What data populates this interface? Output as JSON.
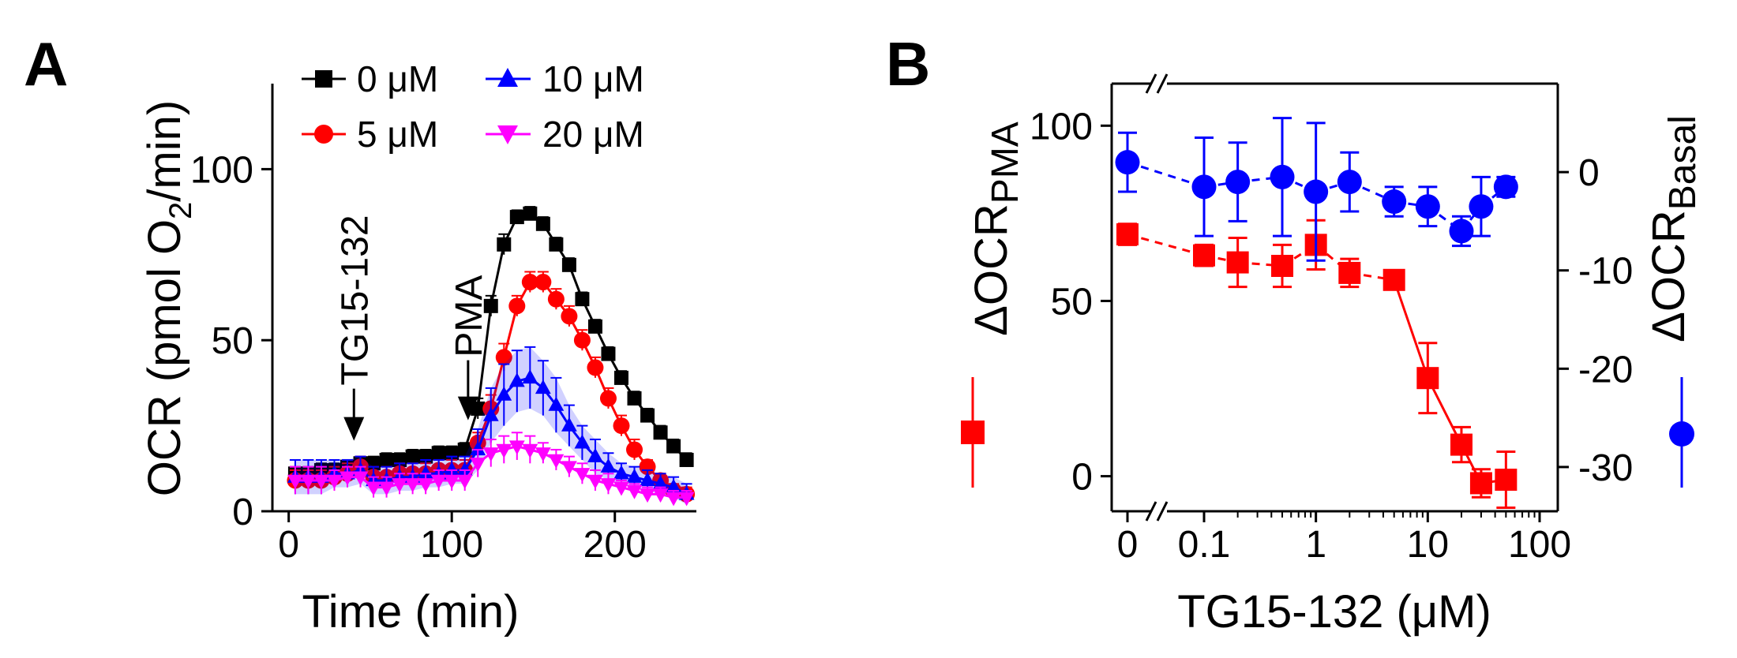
{
  "panel_labels": {
    "a": "A",
    "b": "B"
  },
  "chart_data": [
    {
      "type": "line",
      "panel": "A",
      "title": "",
      "xlabel": "Time (min)",
      "ylabel_main": "OCR (pmol O",
      "ylabel_sub": "2",
      "ylabel_tail": "/min)",
      "xlim": [
        -10,
        250
      ],
      "ylim": [
        0,
        125
      ],
      "xticks": [
        0,
        100,
        200
      ],
      "yticks": [
        0,
        50,
        100
      ],
      "x": [
        4,
        12,
        20,
        28,
        36,
        44,
        52,
        60,
        68,
        76,
        84,
        92,
        100,
        108,
        116,
        124,
        132,
        140,
        148,
        156,
        164,
        172,
        180,
        188,
        196,
        204,
        212,
        220,
        228,
        236,
        244
      ],
      "annotations": [
        {
          "label": "TG15-132",
          "x": 40
        },
        {
          "label": "PMA",
          "x": 110
        }
      ],
      "legend": {
        "position": "top",
        "columns": 2
      },
      "series": [
        {
          "name": "0 μM",
          "color": "#000000",
          "marker": "square",
          "values": [
            11,
            11,
            12,
            12,
            13,
            14,
            14,
            15,
            15,
            16,
            16,
            17,
            17,
            18,
            30,
            60,
            78,
            86,
            87,
            84,
            78,
            72,
            62,
            54,
            46,
            39,
            33,
            28,
            23,
            19,
            15
          ],
          "errors": [
            2,
            2,
            2,
            2,
            2,
            2,
            2,
            2,
            2,
            2,
            2,
            2,
            2,
            2,
            3,
            3,
            3,
            2,
            2,
            2,
            2,
            2,
            2,
            2,
            2,
            2,
            2,
            2,
            2,
            2,
            2
          ]
        },
        {
          "name": "5 μM",
          "color": "#ff0000",
          "marker": "circle",
          "values": [
            9,
            9,
            9,
            10,
            11,
            13,
            10,
            10,
            11,
            11,
            11,
            12,
            12,
            12,
            20,
            30,
            45,
            60,
            67,
            67,
            62,
            57,
            50,
            42,
            33,
            25,
            18,
            13,
            9,
            6,
            5
          ],
          "errors": [
            3,
            3,
            3,
            3,
            3,
            3,
            3,
            3,
            3,
            3,
            3,
            3,
            3,
            3,
            3,
            4,
            4,
            3,
            3,
            3,
            3,
            3,
            3,
            3,
            3,
            3,
            3,
            2,
            2,
            2,
            2
          ]
        },
        {
          "name": "10 μM",
          "color": "#0000ff",
          "marker": "triangle-up",
          "values": [
            10,
            10,
            10,
            11,
            11,
            12,
            9,
            9,
            10,
            10,
            11,
            11,
            12,
            12,
            18,
            28,
            34,
            38,
            39,
            36,
            31,
            25,
            20,
            16,
            13,
            11,
            10,
            9,
            8,
            7,
            5
          ],
          "errors": [
            5,
            5,
            5,
            4,
            4,
            4,
            4,
            4,
            4,
            4,
            4,
            4,
            4,
            4,
            6,
            8,
            9,
            9,
            9,
            8,
            8,
            6,
            5,
            5,
            4,
            3,
            3,
            3,
            3,
            3,
            3
          ],
          "shaded_error": true
        },
        {
          "name": "20 μM",
          "color": "#ff00ff",
          "marker": "triangle-down",
          "values": [
            9,
            9,
            9,
            9,
            10,
            10,
            7,
            7,
            8,
            8,
            8,
            9,
            9,
            9,
            14,
            17,
            18,
            19,
            18,
            17,
            15,
            13,
            11,
            9,
            8,
            7,
            6,
            5,
            5,
            4,
            4
          ],
          "errors": [
            4,
            4,
            4,
            3,
            3,
            3,
            3,
            3,
            3,
            3,
            3,
            3,
            3,
            3,
            4,
            4,
            4,
            4,
            4,
            3,
            3,
            3,
            3,
            3,
            3,
            2,
            2,
            2,
            2,
            2,
            2
          ]
        }
      ]
    },
    {
      "type": "scatter",
      "panel": "B",
      "title": "",
      "xlabel": "TG15-132 (μM)",
      "xscale": "log",
      "xticks": [
        0.1,
        1,
        10,
        100
      ],
      "xtick_labels": [
        "0.1",
        "1",
        "10",
        "100"
      ],
      "zero_tick_label": "0",
      "left_y": {
        "label_main": "ΔOCR",
        "label_sub": "PMA",
        "ylim": [
          -10,
          112
        ],
        "yticks": [
          0,
          50,
          100
        ]
      },
      "right_y": {
        "label_main": "ΔOCR",
        "label_sub": "Basal",
        "ylim": [
          -34.5,
          9.0
        ],
        "yticks": [
          0,
          -10,
          -20,
          -30
        ]
      },
      "series": [
        {
          "name": "ΔOCR_PMA",
          "axis": "left",
          "color": "#ff0000",
          "marker": "square",
          "x": [
            0,
            0.1,
            0.2,
            0.5,
            1,
            2,
            5,
            10,
            20,
            30,
            50
          ],
          "values": [
            69,
            63,
            61,
            60,
            66,
            58,
            56,
            28,
            9,
            -2,
            -1
          ],
          "errors": [
            3,
            3,
            7,
            6,
            7,
            4,
            2,
            10,
            5,
            4,
            8
          ]
        },
        {
          "name": "ΔOCR_Basal",
          "axis": "right",
          "color": "#0000ff",
          "marker": "circle",
          "x": [
            0,
            0.1,
            0.2,
            0.5,
            1,
            2,
            5,
            10,
            20,
            30,
            50
          ],
          "values": [
            1,
            -1.5,
            -1,
            -0.5,
            -2,
            -1,
            -3,
            -3.5,
            -6,
            -3.5,
            -1.5
          ],
          "errors": [
            3,
            5,
            4,
            6,
            7,
            3,
            1.5,
            2,
            1.5,
            3,
            1
          ]
        }
      ]
    }
  ]
}
